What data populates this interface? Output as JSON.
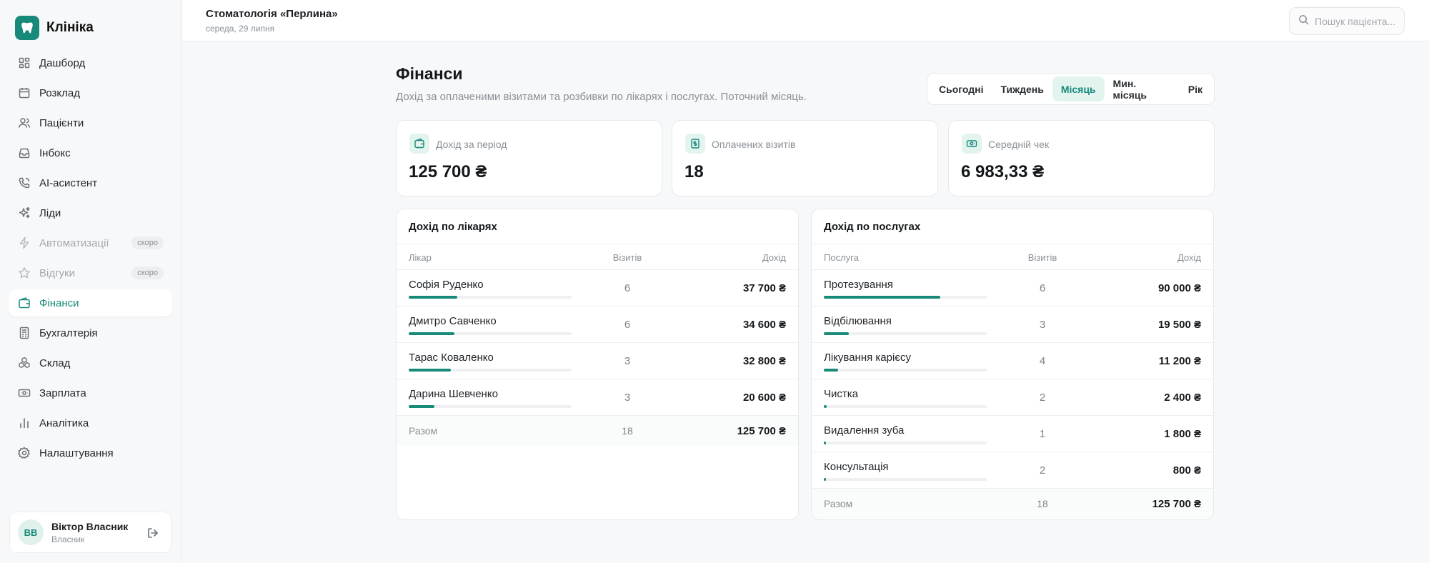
{
  "brand": {
    "name": "Клініка"
  },
  "sidebar": {
    "items": [
      {
        "label": "Дашборд",
        "icon": "dashboard-icon"
      },
      {
        "label": "Розклад",
        "icon": "calendar-icon"
      },
      {
        "label": "Пацієнти",
        "icon": "users-icon"
      },
      {
        "label": "Інбокс",
        "icon": "inbox-icon"
      },
      {
        "label": "AI-асистент",
        "icon": "phone-icon"
      },
      {
        "label": "Ліди",
        "icon": "sparkles-icon"
      },
      {
        "label": "Автоматизації",
        "icon": "lightning-icon",
        "badge": "скоро"
      },
      {
        "label": "Відгуки",
        "icon": "star-icon",
        "badge": "скоро"
      },
      {
        "label": "Фінанси",
        "icon": "wallet-icon"
      },
      {
        "label": "Бухгалтерія",
        "icon": "ledger-icon"
      },
      {
        "label": "Склад",
        "icon": "boxes-icon"
      },
      {
        "label": "Зарплата",
        "icon": "money-icon"
      },
      {
        "label": "Аналітика",
        "icon": "bar-chart-icon"
      },
      {
        "label": "Налаштування",
        "icon": "gear-icon"
      }
    ]
  },
  "user": {
    "initials": "ВВ",
    "name": "Віктор Власник",
    "role": "Власник"
  },
  "header": {
    "clinic_name": "Стоматологія «Перлина»",
    "date": "середа, 29 липня",
    "search_placeholder": "Пошук пацієнта..."
  },
  "page": {
    "title": "Фінанси",
    "subtitle": "Дохід за оплаченими візитами та розбивки по лікарях і послугах. Поточний місяць."
  },
  "periods": {
    "options": [
      "Сьогодні",
      "Тиждень",
      "Місяць",
      "Мин. місяць",
      "Рік"
    ],
    "selected": "Місяць"
  },
  "stats": [
    {
      "label": "Дохід за період",
      "value": "125 700 ₴",
      "icon": "wallet-icon"
    },
    {
      "label": "Оплачених візитів",
      "value": "18",
      "icon": "receipt-icon"
    },
    {
      "label": "Середній чек",
      "value": "6 983,33 ₴",
      "icon": "cash-icon"
    }
  ],
  "doctors": {
    "title": "Дохід по лікарях",
    "headers": {
      "name": "Лікар",
      "count": "Візитів",
      "sum": "Дохід"
    },
    "rows": [
      {
        "name": "Софія Руденко",
        "count": "6",
        "sum": "37 700 ₴",
        "share": 0.3
      },
      {
        "name": "Дмитро Савченко",
        "count": "6",
        "sum": "34 600 ₴",
        "share": 0.28
      },
      {
        "name": "Тарас Коваленко",
        "count": "3",
        "sum": "32 800 ₴",
        "share": 0.26
      },
      {
        "name": "Дарина Шевченко",
        "count": "3",
        "sum": "20 600 ₴",
        "share": 0.16
      }
    ],
    "total": {
      "label": "Разом",
      "count": "18",
      "sum": "125 700 ₴"
    }
  },
  "services": {
    "title": "Дохід по послугах",
    "headers": {
      "name": "Послуга",
      "count": "Візитів",
      "sum": "Дохід"
    },
    "rows": [
      {
        "name": "Протезування",
        "count": "6",
        "sum": "90 000 ₴",
        "share": 0.716
      },
      {
        "name": "Відбілювання",
        "count": "3",
        "sum": "19 500 ₴",
        "share": 0.155
      },
      {
        "name": "Лікування карієсу",
        "count": "4",
        "sum": "11 200 ₴",
        "share": 0.089
      },
      {
        "name": "Чистка",
        "count": "2",
        "sum": "2 400 ₴",
        "share": 0.019
      },
      {
        "name": "Видалення зуба",
        "count": "1",
        "sum": "1 800 ₴",
        "share": 0.014
      },
      {
        "name": "Консультація",
        "count": "2",
        "sum": "800 ₴",
        "share": 0.006
      }
    ],
    "total": {
      "label": "Разом",
      "count": "18",
      "sum": "125 700 ₴"
    }
  },
  "colors": {
    "accent": "#178a7a",
    "accent_soft": "#e3f4ef"
  }
}
